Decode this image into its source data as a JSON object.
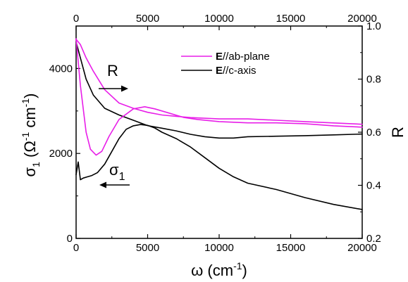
{
  "chart_data": {
    "type": "line",
    "x_axis": {
      "label": "ω (cm⁻¹)",
      "lim": [
        0,
        20000
      ],
      "ticks": [
        "0",
        "5000",
        "10000",
        "15000",
        "20000"
      ],
      "top_ticks": [
        "0",
        "5000",
        "10000",
        "15000",
        "20000"
      ]
    },
    "y_left": {
      "label": "σ₁ (Ω⁻¹ cm⁻¹)",
      "lim": [
        0,
        5000
      ],
      "ticks": [
        "0",
        "2000",
        "4000"
      ]
    },
    "y_right": {
      "label": "R",
      "lim": [
        0.2,
        1.0
      ],
      "ticks": [
        "0.2",
        "0.4",
        "0.6",
        "0.8",
        "1.0"
      ]
    },
    "grid": false,
    "legend_position": "top-right",
    "legend": [
      {
        "bold": "E",
        "rest": "//ab-plane",
        "color": "#e81ee8"
      },
      {
        "bold": "E",
        "rest": "//c-axis",
        "color": "#000000"
      }
    ],
    "annotations": {
      "R_label": "R",
      "sigma_label": "σ",
      "sigma_sub": "1"
    },
    "series": [
      {
        "quantity": "R",
        "axis": "right",
        "color": "#e81ee8",
        "x": [
          0,
          300,
          700,
          1200,
          2000,
          3000,
          4000,
          5000,
          6000,
          7000,
          8000,
          10000,
          12000,
          14000,
          16000,
          18000,
          20000
        ],
        "y": [
          0.95,
          0.93,
          0.88,
          0.83,
          0.76,
          0.71,
          0.69,
          0.675,
          0.665,
          0.66,
          0.655,
          0.65,
          0.65,
          0.645,
          0.64,
          0.635,
          0.63
        ]
      },
      {
        "quantity": "R",
        "axis": "right",
        "color": "#000000",
        "x": [
          0,
          300,
          700,
          1200,
          2000,
          3000,
          4000,
          5000,
          6000,
          7000,
          8000,
          9000,
          10000,
          11000,
          12000,
          14000,
          16000,
          18000,
          20000
        ],
        "y": [
          0.94,
          0.88,
          0.8,
          0.74,
          0.69,
          0.665,
          0.645,
          0.625,
          0.615,
          0.605,
          0.592,
          0.583,
          0.578,
          0.578,
          0.583,
          0.585,
          0.587,
          0.59,
          0.593
        ]
      },
      {
        "quantity": "sigma1",
        "axis": "left",
        "color": "#e81ee8",
        "x": [
          0,
          300,
          700,
          1000,
          1400,
          1800,
          2300,
          3000,
          4000,
          4800,
          5500,
          6500,
          7500,
          8500,
          10000,
          12000,
          14000,
          16000,
          18000,
          20000
        ],
        "y": [
          4700,
          3600,
          2500,
          2100,
          1960,
          2050,
          2400,
          2800,
          3050,
          3100,
          3050,
          2950,
          2850,
          2800,
          2750,
          2720,
          2720,
          2700,
          2650,
          2620
        ]
      },
      {
        "quantity": "sigma1",
        "axis": "left",
        "color": "#000000",
        "x": [
          0,
          150,
          300,
          500,
          800,
          1100,
          1500,
          2000,
          2500,
          3000,
          3500,
          4000,
          4500,
          5000,
          5500,
          6000,
          7000,
          8000,
          9000,
          10000,
          11000,
          12000,
          14000,
          16000,
          18000,
          20000
        ],
        "y": [
          1500,
          1800,
          1380,
          1420,
          1450,
          1480,
          1550,
          1750,
          2050,
          2350,
          2570,
          2650,
          2680,
          2660,
          2600,
          2500,
          2350,
          2150,
          1900,
          1650,
          1450,
          1300,
          1150,
          960,
          800,
          680
        ]
      }
    ]
  }
}
